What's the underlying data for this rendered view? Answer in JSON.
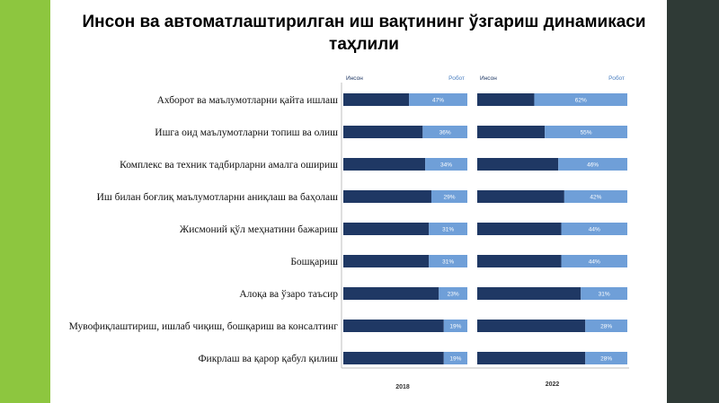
{
  "title": "Инсон ва автоматлаштирилган иш вақтининг ўзгариш динамикаси таҳлили",
  "colors": {
    "human": "#1f3864",
    "robot": "#6f9fd8",
    "left_band": "#8dc63f",
    "right_band": "#2f3a36"
  },
  "chart_data": {
    "type": "bar",
    "stacked": true,
    "orientation": "horizontal",
    "title": "Инсон ва автоматлаштирилган иш вақтининг ўзгариш динамикаси таҳлили",
    "categories": [
      "Ахборот ва маълумотларни қайта ишлаш",
      "Ишга оид маълумотларни топиш ва олиш",
      "Комплекс ва техник тадбирларни амалга ошириш",
      "Иш билан боғлиқ маълумотларни аниқлаш ва баҳолаш",
      "Жисмоний қўл меҳнатини бажариш",
      "Бошқариш",
      "Алоқа ва ўзаро таъсир",
      "Мувофиқлаштириш, ишлаб чиқиш, бошқариш ва консалтинг",
      "Фикрлаш ва қарор қабул қилиш"
    ],
    "legend": [
      "Инсон",
      "Робот"
    ],
    "panels": [
      {
        "label": "2018",
        "series": [
          {
            "name": "Инсон",
            "values": [
              53,
              64,
              66,
              71,
              69,
              69,
              77,
              81,
              81
            ]
          },
          {
            "name": "Робот",
            "values": [
              47,
              36,
              34,
              29,
              31,
              31,
              23,
              19,
              19
            ]
          }
        ]
      },
      {
        "label": "2022",
        "series": [
          {
            "name": "Инсон",
            "values": [
              38,
              45,
              54,
              58,
              56,
              56,
              69,
              72,
              72
            ]
          },
          {
            "name": "Робот",
            "values": [
              62,
              55,
              46,
              42,
              44,
              44,
              31,
              28,
              28
            ]
          }
        ]
      }
    ],
    "xlim": [
      0,
      100
    ]
  }
}
